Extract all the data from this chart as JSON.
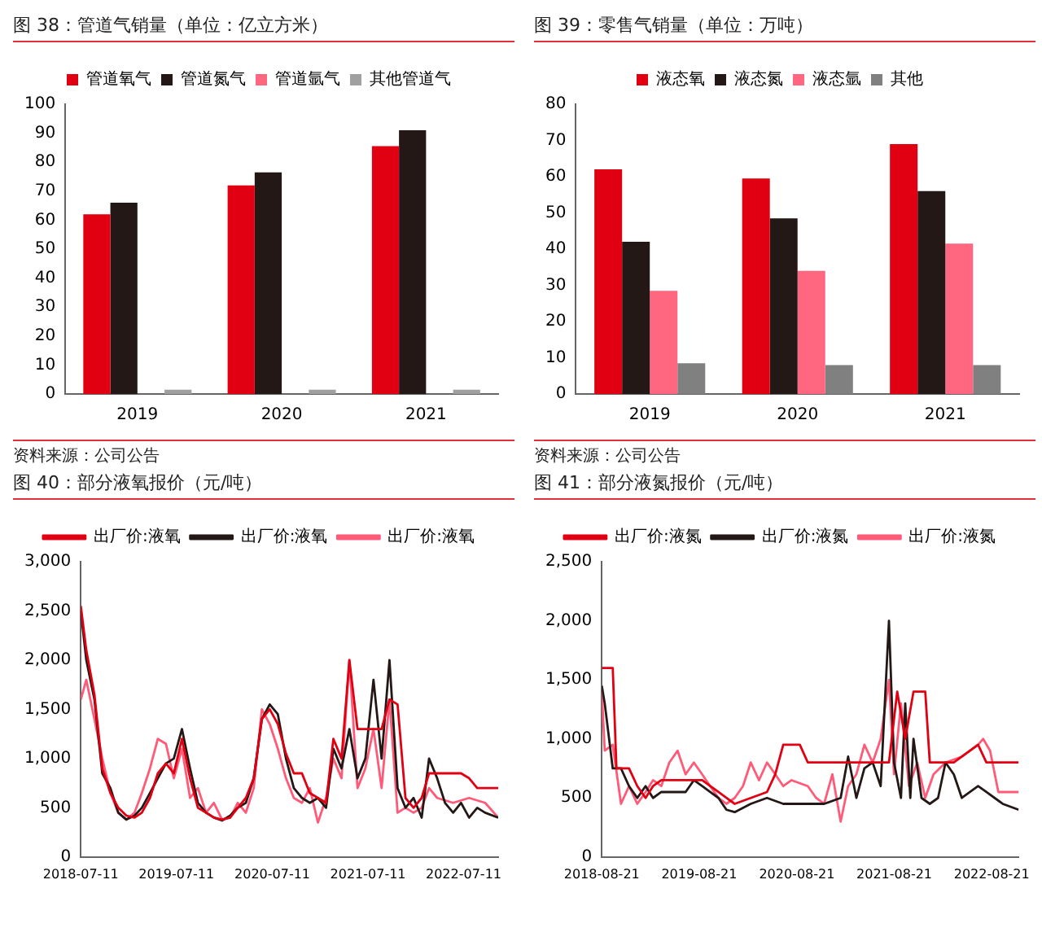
{
  "chart_data": [
    {
      "type": "bar",
      "title": "图 38：管道气销量（单位：亿立方米）",
      "categories": [
        "2019",
        "2020",
        "2021"
      ],
      "legend": "top",
      "ylim": [
        0,
        100
      ],
      "yticks": [
        0,
        10,
        20,
        30,
        40,
        50,
        60,
        70,
        80,
        90,
        100
      ],
      "annotations": [
        "资料来源：公司公告"
      ],
      "series": [
        {
          "name": "管道氧气",
          "color": "#e00012",
          "values": [
            62,
            72,
            85.5
          ]
        },
        {
          "name": "管道氮气",
          "color": "#231815",
          "values": [
            66,
            76.5,
            91
          ]
        },
        {
          "name": "管道氩气",
          "color": "#ff6680",
          "values": [
            0,
            0,
            0
          ]
        },
        {
          "name": "其他管道气",
          "color": "#a0a0a0",
          "values": [
            1.5,
            1.5,
            1.5
          ]
        }
      ]
    },
    {
      "type": "bar",
      "title": "图 39：零售气销量（单位：万吨）",
      "categories": [
        "2019",
        "2020",
        "2021"
      ],
      "legend": "top",
      "ylim": [
        0,
        80
      ],
      "yticks": [
        0,
        10,
        20,
        30,
        40,
        50,
        60,
        70,
        80
      ],
      "annotations": [
        "资料来源：公司公告"
      ],
      "series": [
        {
          "name": "液态氧",
          "color": "#e00012",
          "values": [
            62,
            59.5,
            69
          ]
        },
        {
          "name": "液态氮",
          "color": "#231815",
          "values": [
            42,
            48.5,
            56
          ]
        },
        {
          "name": "液态氩",
          "color": "#ff6680",
          "values": [
            28.5,
            34,
            41.5
          ]
        },
        {
          "name": "其他",
          "color": "#808080",
          "values": [
            8.5,
            8,
            8
          ]
        }
      ]
    },
    {
      "type": "line",
      "title": "图 40：部分液氧报价（元/吨）",
      "legend": "top",
      "xlim": [
        "2018-07-11",
        "2022-11-20"
      ],
      "xticks": [
        "2018-07-11",
        "2019-07-11",
        "2020-07-11",
        "2021-07-11",
        "2022-07-11"
      ],
      "ylim": [
        0,
        3000
      ],
      "yticks": [
        {
          "value": 0,
          "label": "0"
        },
        {
          "value": 500,
          "label": "500"
        },
        {
          "value": 1000,
          "label": "1,000"
        },
        {
          "value": 1500,
          "label": "1,500"
        },
        {
          "value": 2000,
          "label": "2,000"
        },
        {
          "value": 2500,
          "label": "2,500"
        },
        {
          "value": 3000,
          "label": "3,000"
        }
      ],
      "series": [
        {
          "name": "出厂价:液氧",
          "color": "#e00012",
          "x": [
            "2018-07-11",
            "2018-08-01",
            "2018-09-01",
            "2018-10-01",
            "2018-11-01",
            "2018-12-01",
            "2019-01-01",
            "2019-02-01",
            "2019-03-01",
            "2019-04-01",
            "2019-05-01",
            "2019-06-01",
            "2019-07-01",
            "2019-08-01",
            "2019-09-01",
            "2019-10-01",
            "2019-11-01",
            "2019-12-01",
            "2020-01-01",
            "2020-02-01",
            "2020-03-01",
            "2020-04-01",
            "2020-05-01",
            "2020-06-01",
            "2020-07-01",
            "2020-08-01",
            "2020-09-01",
            "2020-10-01",
            "2020-11-01",
            "2020-12-01",
            "2021-01-01",
            "2021-02-01",
            "2021-03-01",
            "2021-04-01",
            "2021-05-01",
            "2021-06-01",
            "2021-09-01",
            "2021-10-01",
            "2021-11-01",
            "2021-12-01",
            "2022-01-01",
            "2022-02-01",
            "2022-03-01",
            "2022-07-01",
            "2022-08-01",
            "2022-09-01",
            "2022-11-20"
          ],
          "values": [
            2550,
            2100,
            1650,
            900,
            650,
            500,
            420,
            400,
            450,
            600,
            850,
            950,
            850,
            1200,
            800,
            500,
            450,
            400,
            380,
            400,
            500,
            600,
            800,
            1400,
            1500,
            1350,
            1050,
            850,
            850,
            650,
            600,
            550,
            1200,
            1000,
            2000,
            1300,
            1300,
            1600,
            1550,
            600,
            500,
            600,
            850,
            850,
            800,
            700,
            700
          ]
        },
        {
          "name": "出厂价:液氧",
          "color": "#231815",
          "x": [
            "2018-07-11",
            "2018-08-01",
            "2018-09-01",
            "2018-10-01",
            "2018-11-01",
            "2018-12-01",
            "2019-01-01",
            "2019-02-01",
            "2019-03-01",
            "2019-04-01",
            "2019-05-01",
            "2019-06-01",
            "2019-07-01",
            "2019-08-01",
            "2019-09-01",
            "2019-10-01",
            "2019-11-01",
            "2019-12-01",
            "2020-01-01",
            "2020-02-01",
            "2020-03-01",
            "2020-04-01",
            "2020-05-01",
            "2020-06-01",
            "2020-07-01",
            "2020-08-01",
            "2020-09-01",
            "2020-10-01",
            "2020-11-01",
            "2020-12-01",
            "2021-01-01",
            "2021-02-01",
            "2021-03-01",
            "2021-04-01",
            "2021-05-01",
            "2021-06-01",
            "2021-07-01",
            "2021-08-01",
            "2021-09-01",
            "2021-10-01",
            "2021-11-01",
            "2021-12-01",
            "2022-01-01",
            "2022-02-01",
            "2022-03-01",
            "2022-04-01",
            "2022-05-01",
            "2022-06-01",
            "2022-07-01",
            "2022-08-01",
            "2022-09-01",
            "2022-10-01",
            "2022-11-20"
          ],
          "values": [
            2500,
            2000,
            1600,
            850,
            700,
            450,
            380,
            420,
            500,
            650,
            800,
            950,
            1000,
            1300,
            900,
            550,
            450,
            400,
            370,
            420,
            500,
            550,
            800,
            1400,
            1550,
            1450,
            1000,
            700,
            600,
            550,
            600,
            500,
            1100,
            900,
            1300,
            800,
            1000,
            1800,
            1000,
            2000,
            700,
            500,
            600,
            400,
            1000,
            800,
            550,
            450,
            550,
            400,
            500,
            450,
            400
          ]
        },
        {
          "name": "出厂价:液氧",
          "color": "#ff5a78",
          "x": [
            "2018-07-11",
            "2018-08-01",
            "2018-09-01",
            "2018-10-01",
            "2018-11-01",
            "2018-12-01",
            "2019-01-01",
            "2019-02-01",
            "2019-03-01",
            "2019-04-01",
            "2019-05-01",
            "2019-06-01",
            "2019-07-01",
            "2019-08-01",
            "2019-09-01",
            "2019-10-01",
            "2019-11-01",
            "2019-12-01",
            "2020-01-01",
            "2020-02-01",
            "2020-03-01",
            "2020-04-01",
            "2020-05-01",
            "2020-06-01",
            "2020-07-01",
            "2020-08-01",
            "2020-09-01",
            "2020-10-01",
            "2020-11-01",
            "2020-12-01",
            "2021-01-01",
            "2021-02-01",
            "2021-03-01",
            "2021-04-01",
            "2021-05-01",
            "2021-06-01",
            "2021-07-01",
            "2021-08-01",
            "2021-09-01",
            "2021-10-01",
            "2021-11-01",
            "2021-12-01",
            "2022-01-01",
            "2022-02-01",
            "2022-03-01",
            "2022-04-01",
            "2022-06-01",
            "2022-08-01",
            "2022-10-01",
            "2022-11-20"
          ],
          "values": [
            1600,
            1800,
            1400,
            1000,
            650,
            450,
            380,
            450,
            650,
            900,
            1200,
            1150,
            800,
            1100,
            600,
            700,
            450,
            550,
            380,
            400,
            550,
            450,
            700,
            1500,
            1350,
            1100,
            800,
            600,
            550,
            700,
            350,
            600,
            1000,
            800,
            2000,
            700,
            900,
            1300,
            700,
            1600,
            450,
            500,
            450,
            500,
            700,
            600,
            550,
            600,
            550,
            400
          ]
        }
      ]
    },
    {
      "type": "line",
      "title": "图 41：部分液氮报价（元/吨）",
      "legend": "top",
      "xlim": [
        "2018-08-21",
        "2022-11-30"
      ],
      "xticks": [
        "2018-08-21",
        "2019-08-21",
        "2020-08-21",
        "2021-08-21",
        "2022-08-21"
      ],
      "ylim": [
        0,
        2500
      ],
      "yticks": [
        {
          "value": 0,
          "label": "0"
        },
        {
          "value": 500,
          "label": "500"
        },
        {
          "value": 1000,
          "label": "1,000"
        },
        {
          "value": 1500,
          "label": "1,500"
        },
        {
          "value": 2000,
          "label": "2,000"
        },
        {
          "value": 2500,
          "label": "2,500"
        }
      ],
      "series": [
        {
          "name": "出厂价:液氮",
          "color": "#e00012",
          "x": [
            "2018-08-21",
            "2018-10-01",
            "2018-10-15",
            "2018-12-01",
            "2019-01-01",
            "2019-02-01",
            "2019-03-01",
            "2019-04-01",
            "2019-07-01",
            "2019-09-01",
            "2019-11-01",
            "2019-12-01",
            "2020-01-01",
            "2020-05-01",
            "2020-06-01",
            "2020-07-01",
            "2020-09-01",
            "2020-10-01",
            "2021-03-01",
            "2021-06-01",
            "2021-08-01",
            "2021-09-01",
            "2021-10-01",
            "2021-11-01",
            "2021-12-15",
            "2022-01-01",
            "2022-04-01",
            "2022-06-01",
            "2022-07-01",
            "2022-08-01",
            "2022-11-30"
          ],
          "values": [
            1600,
            1600,
            750,
            750,
            600,
            500,
            600,
            650,
            650,
            650,
            550,
            500,
            450,
            550,
            700,
            950,
            950,
            800,
            800,
            800,
            800,
            1400,
            1000,
            1400,
            1400,
            800,
            800,
            900,
            950,
            800,
            800
          ]
        },
        {
          "name": "出厂价:液氮",
          "color": "#231815",
          "x": [
            "2018-08-21",
            "2018-09-01",
            "2018-10-01",
            "2018-11-01",
            "2018-12-01",
            "2019-01-01",
            "2019-02-01",
            "2019-03-01",
            "2019-04-01",
            "2019-07-01",
            "2019-08-01",
            "2019-09-01",
            "2019-10-01",
            "2019-11-01",
            "2019-12-01",
            "2020-01-01",
            "2020-03-01",
            "2020-05-01",
            "2020-07-01",
            "2020-09-01",
            "2020-12-01",
            "2021-02-01",
            "2021-03-01",
            "2021-04-01",
            "2021-05-01",
            "2021-06-01",
            "2021-07-01",
            "2021-08-01",
            "2021-08-20",
            "2021-09-15",
            "2021-10-01",
            "2021-10-20",
            "2021-11-01",
            "2021-12-01",
            "2022-01-01",
            "2022-02-01",
            "2022-03-01",
            "2022-04-01",
            "2022-05-01",
            "2022-07-01",
            "2022-08-01",
            "2022-09-01",
            "2022-10-01",
            "2022-11-30"
          ],
          "values": [
            1450,
            1300,
            750,
            750,
            600,
            500,
            600,
            500,
            550,
            550,
            650,
            600,
            550,
            500,
            400,
            380,
            450,
            500,
            450,
            450,
            450,
            500,
            850,
            500,
            750,
            800,
            600,
            2000,
            800,
            500,
            1300,
            500,
            1000,
            500,
            450,
            500,
            800,
            700,
            500,
            600,
            550,
            500,
            450,
            400
          ]
        },
        {
          "name": "出厂价:液氮",
          "color": "#ff5a78",
          "x": [
            "2018-08-21",
            "2018-09-01",
            "2018-10-01",
            "2018-11-01",
            "2018-12-01",
            "2019-01-01",
            "2019-02-01",
            "2019-03-01",
            "2019-04-01",
            "2019-05-01",
            "2019-06-01",
            "2019-07-01",
            "2019-08-01",
            "2019-09-01",
            "2019-10-01",
            "2019-11-01",
            "2019-12-01",
            "2020-01-01",
            "2020-02-01",
            "2020-03-01",
            "2020-04-01",
            "2020-05-01",
            "2020-06-01",
            "2020-07-01",
            "2020-08-01",
            "2020-10-01",
            "2020-11-01",
            "2020-12-01",
            "2021-01-01",
            "2021-02-01",
            "2021-03-01",
            "2021-04-01",
            "2021-05-01",
            "2021-06-01",
            "2021-07-01",
            "2021-08-01",
            "2021-08-20",
            "2021-09-15",
            "2021-10-15",
            "2021-11-15",
            "2021-12-15",
            "2022-01-15",
            "2022-03-01",
            "2022-05-01",
            "2022-07-01",
            "2022-07-20",
            "2022-08-15",
            "2022-09-15",
            "2022-11-30"
          ],
          "values": [
            1400,
            900,
            950,
            450,
            600,
            450,
            550,
            650,
            600,
            800,
            900,
            700,
            800,
            700,
            600,
            500,
            450,
            500,
            600,
            800,
            650,
            800,
            700,
            600,
            650,
            600,
            500,
            450,
            700,
            300,
            600,
            700,
            950,
            800,
            1000,
            1500,
            700,
            1300,
            600,
            800,
            500,
            700,
            800,
            850,
            950,
            1000,
            900,
            550,
            550
          ]
        }
      ]
    }
  ]
}
